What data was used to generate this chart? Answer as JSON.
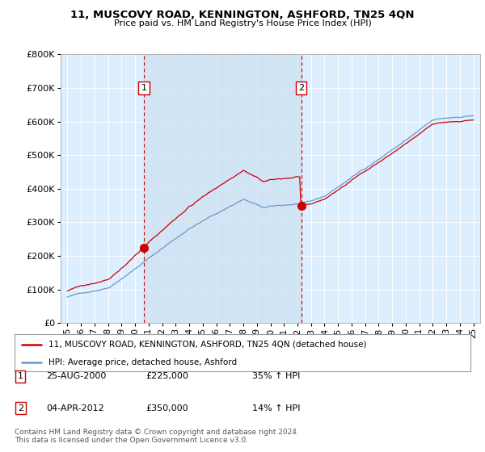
{
  "title": "11, MUSCOVY ROAD, KENNINGTON, ASHFORD, TN25 4QN",
  "subtitle": "Price paid vs. HM Land Registry's House Price Index (HPI)",
  "background_color": "#ffffff",
  "plot_bg_color": "#ddeeff",
  "grid_color": "#ffffff",
  "shade_color": "#cce0f0",
  "red_color": "#cc0000",
  "blue_color": "#6699cc",
  "legend_label_red": "11, MUSCOVY ROAD, KENNINGTON, ASHFORD, TN25 4QN (detached house)",
  "legend_label_blue": "HPI: Average price, detached house, Ashford",
  "sale1_x": 2000.65,
  "sale1_y": 225000,
  "sale2_x": 2012.27,
  "sale2_y": 350000,
  "annotation1_label": "1",
  "annotation2_label": "2",
  "table_rows": [
    [
      "1",
      "25-AUG-2000",
      "£225,000",
      "35% ↑ HPI"
    ],
    [
      "2",
      "04-APR-2012",
      "£350,000",
      "14% ↑ HPI"
    ]
  ],
  "footer": "Contains HM Land Registry data © Crown copyright and database right 2024.\nThis data is licensed under the Open Government Licence v3.0.",
  "ylim": [
    0,
    800000
  ],
  "yticks": [
    0,
    100000,
    200000,
    300000,
    400000,
    500000,
    600000,
    700000,
    800000
  ],
  "ytick_labels": [
    "£0",
    "£100K",
    "£200K",
    "£300K",
    "£400K",
    "£500K",
    "£600K",
    "£700K",
    "£800K"
  ],
  "xlim_start": 1994.5,
  "xlim_end": 2025.5,
  "xtick_years": [
    1995,
    1996,
    1997,
    1998,
    1999,
    2000,
    2001,
    2002,
    2003,
    2004,
    2005,
    2006,
    2007,
    2008,
    2009,
    2010,
    2011,
    2012,
    2013,
    2014,
    2015,
    2016,
    2017,
    2018,
    2019,
    2020,
    2021,
    2022,
    2023,
    2024,
    2025
  ]
}
